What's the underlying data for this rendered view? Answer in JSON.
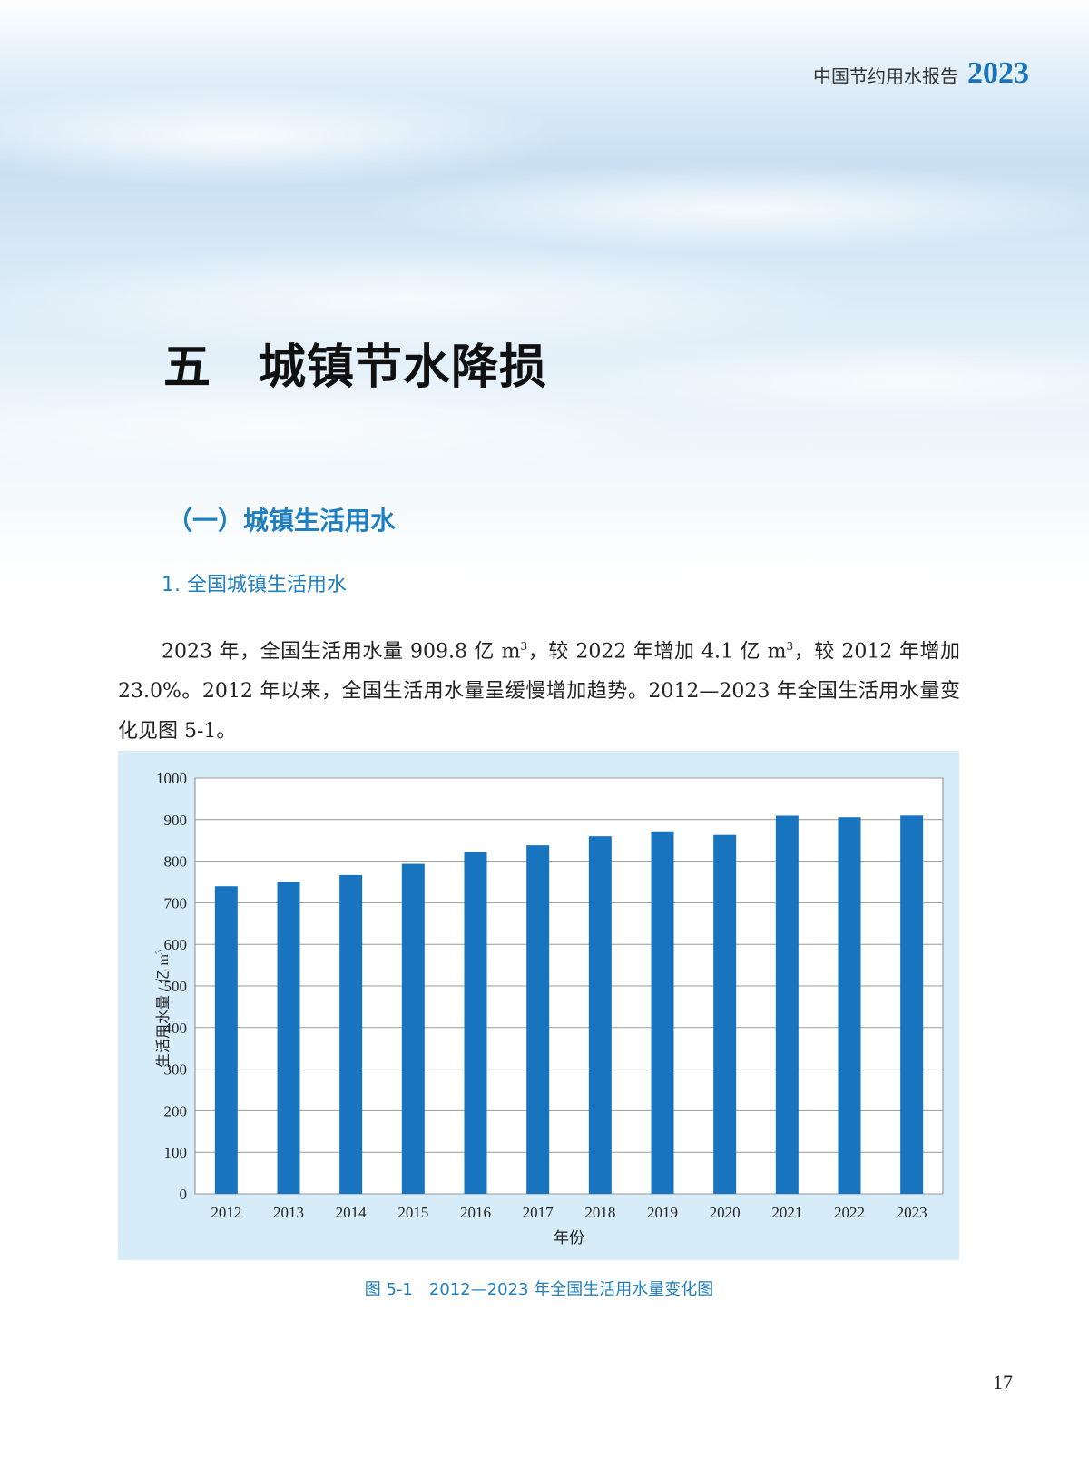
{
  "header": {
    "text": "中国节约用水报告",
    "year": "2023"
  },
  "chapter": {
    "number": "五",
    "title": "城镇节水降损"
  },
  "section": {
    "title": "（一）城镇生活用水"
  },
  "subsection": {
    "title": "1. 全国城镇生活用水"
  },
  "paragraph": {
    "p1": "2023 年，全国生活用水量 909.8 亿 m",
    "sup1": "3",
    "p2": "，较 2022 年增加 4.1 亿 m",
    "sup2": "3",
    "p3": "，较 2012 年增加 23.0%。2012 年以来，全国生活用水量呈缓慢增加趋势。2012—2023 年全国生活用水量变化见图 5-1。"
  },
  "chart_data": {
    "type": "bar",
    "categories": [
      "2012",
      "2013",
      "2014",
      "2015",
      "2016",
      "2017",
      "2018",
      "2019",
      "2020",
      "2021",
      "2022",
      "2023"
    ],
    "values": [
      739.7,
      750.1,
      766.6,
      793.5,
      821.6,
      838.1,
      859.9,
      871.7,
      863.1,
      909.4,
      905.7,
      909.8
    ],
    "xlabel": "年份",
    "ylabel_text": "生活用水量 / 亿 m",
    "ylabel_sup": "3",
    "ylim": [
      0,
      1000
    ],
    "yticks": [
      0,
      100,
      200,
      300,
      400,
      500,
      600,
      700,
      800,
      900,
      1000
    ],
    "grid": true,
    "bar_color": "#1874bf"
  },
  "caption": "图 5-1　2012—2023 年全国生活用水量变化图",
  "page_number": "17"
}
